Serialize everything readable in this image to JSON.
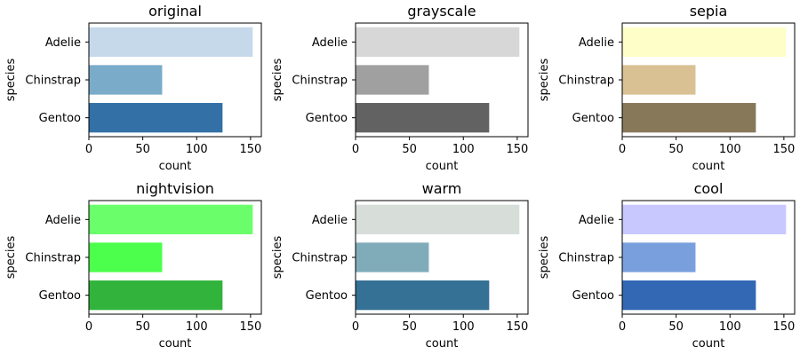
{
  "chart_data": [
    {
      "type": "bar",
      "orientation": "horizontal",
      "title": "original",
      "xlabel": "count",
      "ylabel": "species",
      "categories": [
        "Adelie",
        "Chinstrap",
        "Gentoo"
      ],
      "values": [
        152,
        68,
        124
      ],
      "colors": [
        "#c6d9eb",
        "#7aacca",
        "#3270a6"
      ],
      "xlim": [
        0,
        160
      ],
      "xticks": [
        0,
        50,
        100,
        150
      ]
    },
    {
      "type": "bar",
      "orientation": "horizontal",
      "title": "grayscale",
      "xlabel": "count",
      "ylabel": "species",
      "categories": [
        "Adelie",
        "Chinstrap",
        "Gentoo"
      ],
      "values": [
        152,
        68,
        124
      ],
      "colors": [
        "#d7d7d7",
        "#a0a0a0",
        "#626262"
      ],
      "xlim": [
        0,
        160
      ],
      "xticks": [
        0,
        50,
        100,
        150
      ]
    },
    {
      "type": "bar",
      "orientation": "horizontal",
      "title": "sepia",
      "xlabel": "count",
      "ylabel": "species",
      "categories": [
        "Adelie",
        "Chinstrap",
        "Gentoo"
      ],
      "values": [
        152,
        68,
        124
      ],
      "colors": [
        "#fefec8",
        "#d9c194",
        "#88785a"
      ],
      "xlim": [
        0,
        160
      ],
      "xticks": [
        0,
        50,
        100,
        150
      ]
    },
    {
      "type": "bar",
      "orientation": "horizontal",
      "title": "nightvision",
      "xlabel": "count",
      "ylabel": "species",
      "categories": [
        "Adelie",
        "Chinstrap",
        "Gentoo"
      ],
      "values": [
        152,
        68,
        124
      ],
      "colors": [
        "#6aff6a",
        "#4cff4c",
        "#32b43c"
      ],
      "xlim": [
        0,
        160
      ],
      "xticks": [
        0,
        50,
        100,
        150
      ]
    },
    {
      "type": "bar",
      "orientation": "horizontal",
      "title": "warm",
      "xlabel": "count",
      "ylabel": "species",
      "categories": [
        "Adelie",
        "Chinstrap",
        "Gentoo"
      ],
      "values": [
        152,
        68,
        124
      ],
      "colors": [
        "#d7ddd9",
        "#80acba",
        "#357095"
      ],
      "xlim": [
        0,
        160
      ],
      "xticks": [
        0,
        50,
        100,
        150
      ]
    },
    {
      "type": "bar",
      "orientation": "horizontal",
      "title": "cool",
      "xlabel": "count",
      "ylabel": "species",
      "categories": [
        "Adelie",
        "Chinstrap",
        "Gentoo"
      ],
      "values": [
        152,
        68,
        124
      ],
      "colors": [
        "#c8c8ff",
        "#7a9fdd",
        "#3268b4"
      ],
      "xlim": [
        0,
        160
      ],
      "xticks": [
        0,
        50,
        100,
        150
      ]
    }
  ]
}
